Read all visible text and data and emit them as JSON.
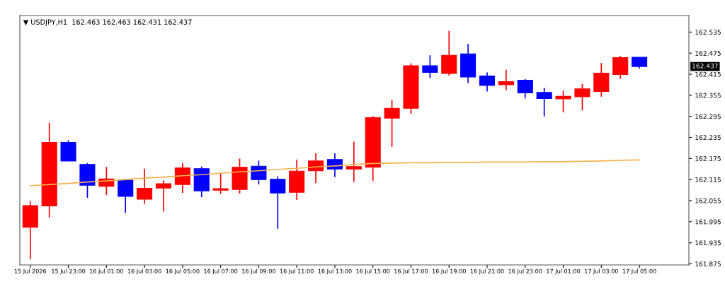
{
  "chart_data": {
    "type": "candlestick",
    "title": "▼ USDJPY,H1  162.463 162.463 162.431 162.437",
    "categories": [
      "15 Jul 2026",
      null,
      "15 Jul 23:00",
      null,
      "16 Jul 01:00",
      null,
      "16 Jul 03:00",
      null,
      "16 Jul 05:00",
      null,
      "16 Jul 07:00",
      null,
      "16 Jul 09:00",
      null,
      "16 Jul 11:00",
      null,
      "16 Jul 13:00",
      null,
      "16 Jul 15:00",
      null,
      "16 Jul 17:00",
      null,
      "16 Jul 19:00",
      null,
      "16 Jul 21:00",
      null,
      "16 Jul 23:00",
      null,
      "17 Jul 01:00",
      null,
      "17 Jul 03:00",
      null,
      "17 Jul 05:00"
    ],
    "ohlc": [
      [
        161.979,
        162.054,
        161.888,
        162.041
      ],
      [
        162.04,
        162.277,
        162.007,
        162.221
      ],
      [
        162.221,
        162.227,
        162.168,
        162.168
      ],
      [
        162.158,
        162.162,
        162.063,
        162.099
      ],
      [
        162.096,
        162.151,
        162.071,
        162.117
      ],
      [
        162.113,
        162.114,
        162.02,
        162.067
      ],
      [
        162.059,
        162.146,
        162.046,
        162.09
      ],
      [
        162.091,
        162.113,
        162.024,
        162.103
      ],
      [
        162.101,
        162.162,
        162.077,
        162.148
      ],
      [
        162.146,
        162.152,
        162.065,
        162.083
      ],
      [
        162.085,
        162.133,
        162.074,
        162.089
      ],
      [
        162.087,
        162.175,
        162.075,
        162.15
      ],
      [
        162.153,
        162.169,
        162.101,
        162.115
      ],
      [
        162.116,
        162.124,
        161.975,
        162.077
      ],
      [
        162.079,
        162.172,
        162.057,
        162.139
      ],
      [
        162.14,
        162.19,
        162.105,
        162.168
      ],
      [
        162.172,
        162.19,
        162.122,
        162.145
      ],
      [
        162.145,
        162.223,
        162.108,
        162.152
      ],
      [
        162.15,
        162.296,
        162.111,
        162.291
      ],
      [
        162.29,
        162.342,
        162.208,
        162.318
      ],
      [
        162.318,
        162.446,
        162.302,
        162.439
      ],
      [
        162.439,
        162.469,
        162.404,
        162.42
      ],
      [
        162.417,
        162.538,
        162.411,
        162.469
      ],
      [
        162.473,
        162.501,
        162.39,
        162.407
      ],
      [
        162.41,
        162.42,
        162.366,
        162.383
      ],
      [
        162.385,
        162.428,
        162.369,
        162.394
      ],
      [
        162.398,
        162.401,
        162.346,
        162.362
      ],
      [
        162.363,
        162.376,
        162.295,
        162.346
      ],
      [
        162.345,
        162.368,
        162.306,
        162.352
      ],
      [
        162.351,
        162.387,
        162.312,
        162.373
      ],
      [
        162.366,
        162.447,
        162.351,
        162.418
      ],
      [
        162.414,
        162.467,
        162.402,
        162.462
      ],
      [
        162.463,
        162.463,
        162.431,
        162.437
      ]
    ],
    "colors": [
      "#ff0000",
      "#ff0000",
      "#0000ff",
      "#0000ff",
      "#ff0000",
      "#0000ff",
      "#ff0000",
      "#ff0000",
      "#ff0000",
      "#0000ff",
      "#ff0000",
      "#ff0000",
      "#0000ff",
      "#0000ff",
      "#ff0000",
      "#ff0000",
      "#0000ff",
      "#ff0000",
      "#ff0000",
      "#ff0000",
      "#ff0000",
      "#0000ff",
      "#ff0000",
      "#0000ff",
      "#0000ff",
      "#ff0000",
      "#0000ff",
      "#0000ff",
      "#ff0000",
      "#ff0000",
      "#ff0000",
      "#ff0000",
      "#0000ff"
    ],
    "series": [
      {
        "type": "line",
        "color": "#f5b24a",
        "values": [
          162.097,
          162.101,
          162.104,
          162.108,
          162.111,
          162.115,
          162.119,
          162.122,
          162.126,
          162.129,
          162.133,
          162.137,
          162.14,
          162.144,
          162.147,
          162.151,
          162.154,
          162.158,
          162.161,
          162.162,
          162.163,
          162.163,
          162.164,
          162.164,
          162.165,
          162.165,
          162.165,
          162.166,
          162.166,
          162.167,
          162.168,
          162.17,
          162.171
        ]
      }
    ],
    "ylim": [
      161.872,
      162.582
    ],
    "yticks": [
      161.875,
      161.935,
      161.995,
      162.055,
      162.115,
      162.175,
      162.235,
      162.295,
      162.355,
      162.415,
      162.475,
      162.535
    ],
    "annotations": [
      "162.437"
    ],
    "grid": false
  }
}
